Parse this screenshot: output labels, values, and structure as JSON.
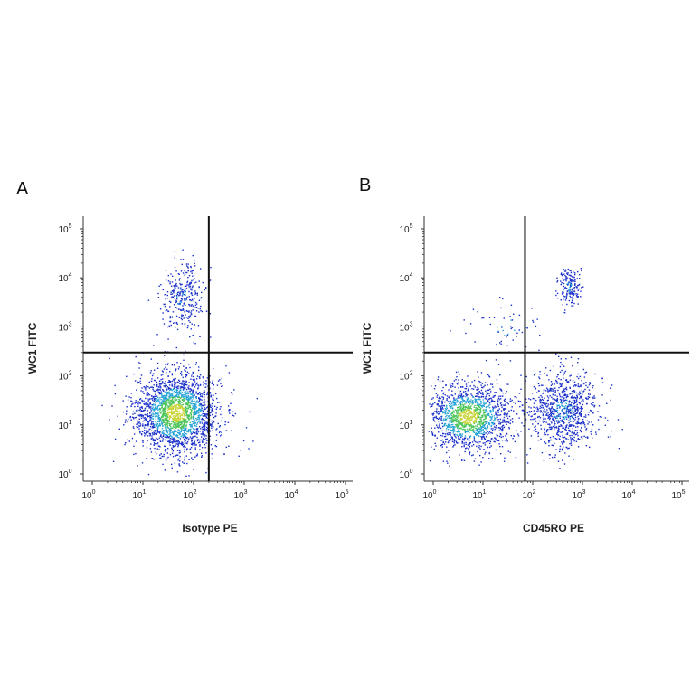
{
  "figure": {
    "panels": [
      {
        "letter": "A"
      },
      {
        "letter": "B"
      }
    ]
  },
  "chart_data": [
    {
      "type": "scatter",
      "title": "",
      "panel_label": "A",
      "xlabel": "Isotype PE",
      "ylabel": "WC1 FITC",
      "x_scale": "log",
      "y_scale": "log",
      "xlim": [
        1,
        100000
      ],
      "ylim": [
        1,
        100000
      ],
      "x_ticks": [
        {
          "base": "10",
          "exp": "0",
          "value": 1
        },
        {
          "base": "10",
          "exp": "1",
          "value": 10
        },
        {
          "base": "10",
          "exp": "2",
          "value": 100
        },
        {
          "base": "10",
          "exp": "3",
          "value": 1000
        },
        {
          "base": "10",
          "exp": "4",
          "value": 10000
        },
        {
          "base": "10",
          "exp": "5",
          "value": 100000
        }
      ],
      "y_ticks": [
        {
          "base": "10",
          "exp": "0",
          "value": 1
        },
        {
          "base": "10",
          "exp": "1",
          "value": 10
        },
        {
          "base": "10",
          "exp": "2",
          "value": 100
        },
        {
          "base": "10",
          "exp": "3",
          "value": 1000
        },
        {
          "base": "10",
          "exp": "4",
          "value": 10000
        },
        {
          "base": "10",
          "exp": "5",
          "value": 100000
        }
      ],
      "quadrant_gate": {
        "x": 200,
        "y": 300
      },
      "populations": [
        {
          "center": [
            45,
            18
          ],
          "spread": [
            0.42,
            0.42
          ],
          "count": 2200,
          "dense": true
        },
        {
          "center": [
            60,
            4000
          ],
          "spread": [
            0.22,
            0.35
          ],
          "count": 320,
          "dense": false
        }
      ],
      "grid": false,
      "legend": "none"
    },
    {
      "type": "scatter",
      "title": "",
      "panel_label": "B",
      "xlabel": "CD45RO PE",
      "ylabel": "WC1 FITC",
      "x_scale": "log",
      "y_scale": "log",
      "xlim": [
        1,
        100000
      ],
      "ylim": [
        1,
        100000
      ],
      "x_ticks": [
        {
          "base": "10",
          "exp": "0",
          "value": 1
        },
        {
          "base": "10",
          "exp": "1",
          "value": 10
        },
        {
          "base": "10",
          "exp": "2",
          "value": 100
        },
        {
          "base": "10",
          "exp": "3",
          "value": 1000
        },
        {
          "base": "10",
          "exp": "4",
          "value": 10000
        },
        {
          "base": "10",
          "exp": "5",
          "value": 100000
        }
      ],
      "y_ticks": [
        {
          "base": "10",
          "exp": "0",
          "value": 1
        },
        {
          "base": "10",
          "exp": "1",
          "value": 10
        },
        {
          "base": "10",
          "exp": "2",
          "value": 100
        },
        {
          "base": "10",
          "exp": "3",
          "value": 1000
        },
        {
          "base": "10",
          "exp": "4",
          "value": 10000
        },
        {
          "base": "10",
          "exp": "5",
          "value": 100000
        }
      ],
      "quadrant_gate": {
        "x": 70,
        "y": 300
      },
      "populations": [
        {
          "center": [
            5,
            15
          ],
          "spread": [
            0.45,
            0.35
          ],
          "count": 1500,
          "dense": true
        },
        {
          "center": [
            400,
            20
          ],
          "spread": [
            0.35,
            0.4
          ],
          "count": 900,
          "dense": false
        },
        {
          "center": [
            550,
            7000
          ],
          "spread": [
            0.12,
            0.2
          ],
          "count": 180,
          "dense": false
        },
        {
          "center": [
            30,
            1000
          ],
          "spread": [
            0.4,
            0.3
          ],
          "count": 60,
          "dense": false
        }
      ],
      "grid": false,
      "legend": "none"
    }
  ],
  "colors": {
    "dot_sparse": "#1a2fc9",
    "dot_mid": "#27a3d6",
    "dot_dense": "#4cc45a",
    "dot_core": "#c8d43a",
    "gate_line": "#111111",
    "axis": "#333333"
  }
}
